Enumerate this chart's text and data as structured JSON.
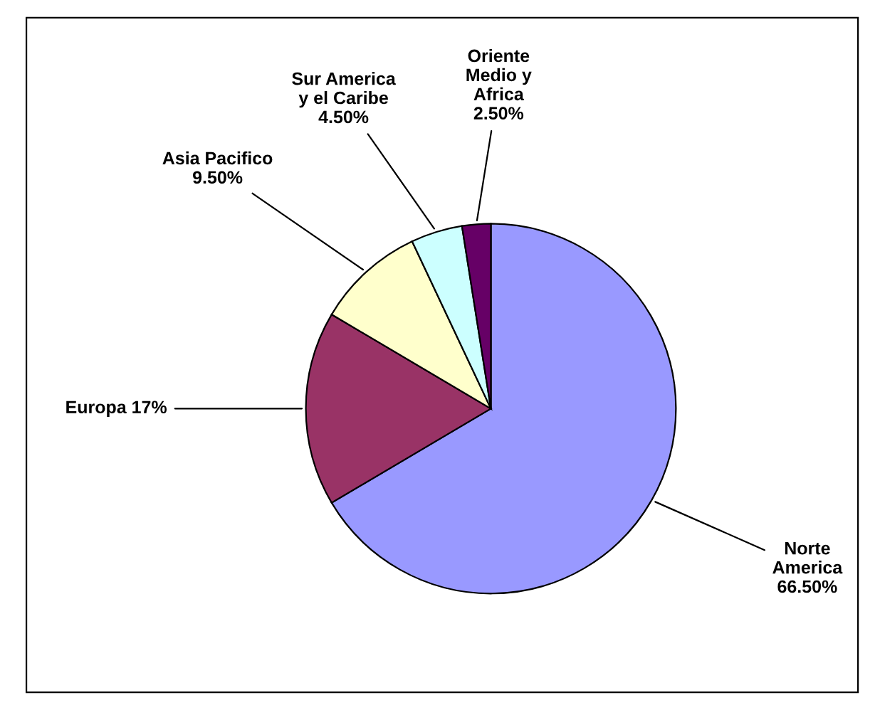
{
  "chart_data": {
    "type": "pie",
    "categories": [
      "Norte\nAmerica",
      "Europa",
      "Asia Pacifico",
      "Sur America\ny el Caribe",
      "Oriente\nMedio y\nAfrica"
    ],
    "values": [
      66.5,
      17,
      9.5,
      4.5,
      2.5
    ],
    "value_labels": [
      "66.50%",
      "17%",
      "9.50%",
      "4.50%",
      "2.50%"
    ],
    "colors": [
      "#9999ff",
      "#993366",
      "#ffffcc",
      "#ccffff",
      "#660066"
    ],
    "legend": false
  }
}
